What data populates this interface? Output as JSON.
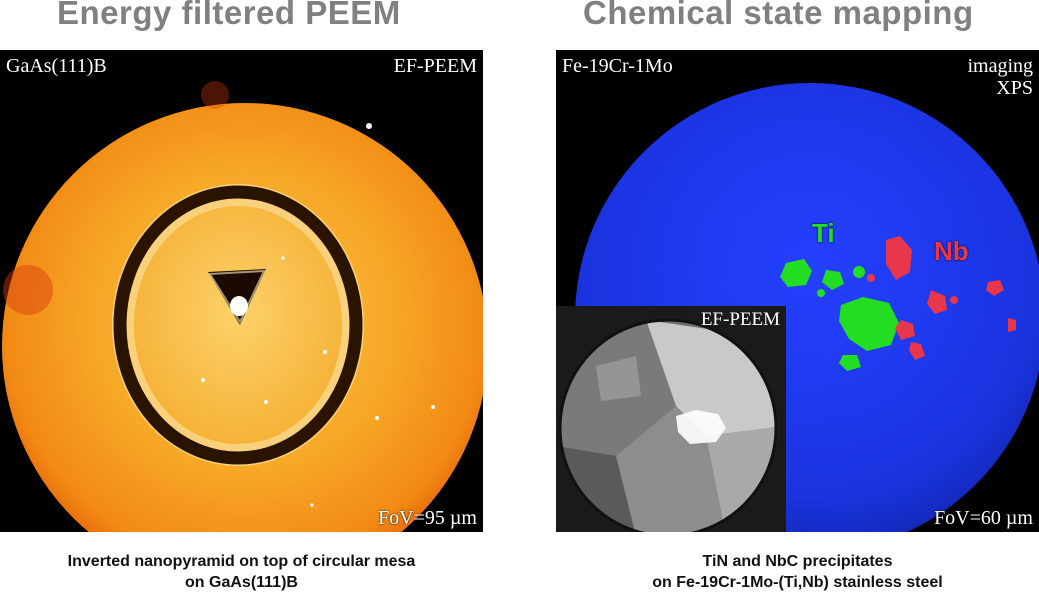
{
  "left": {
    "heading": "Energy filtered PEEM",
    "sample_label": "GaAs(111)B",
    "mode_label": "EF-PEEM",
    "fov_label": "FoV=95 µm",
    "caption_line1": "Inverted nanopyramid on top of circular mesa",
    "caption_line2": "on GaAs(111)B"
  },
  "right": {
    "heading": "Chemical state mapping",
    "sample_label": "Fe-19Cr-1Mo",
    "mode_label_line1": "imaging",
    "mode_label_line2": "XPS",
    "fov_label": "FoV=60 µm",
    "element_ti": "Ti",
    "element_nb": "Nb",
    "inset_label": "EF-PEEM",
    "caption_line1": "TiN and NbC precipitates",
    "caption_line2": "on Fe-19Cr-1Mo-(Ti,Nb) stainless steel"
  },
  "colors": {
    "ti": "#22dd22",
    "nb": "#e8364a",
    "blue_map": "#1e3cf0",
    "peem_orange": "#f5a623"
  }
}
